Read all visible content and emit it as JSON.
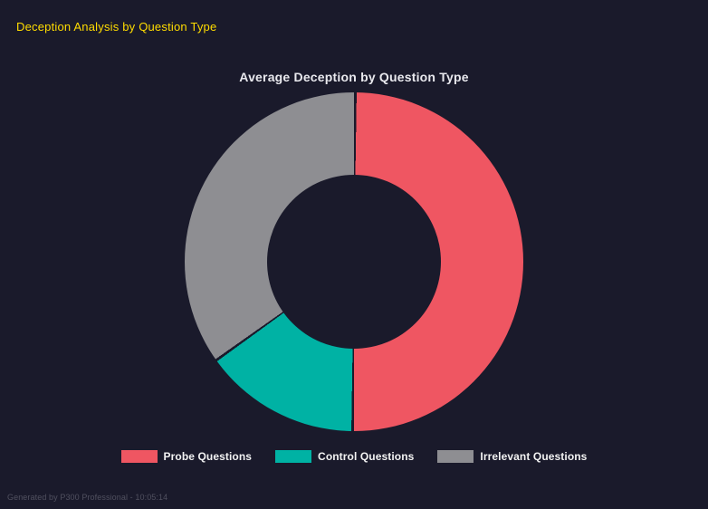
{
  "header": {
    "title": "Deception Analysis by Question Type"
  },
  "footer": {
    "text": "Generated by P300 Professional - 10:05:14"
  },
  "colors": {
    "background": "#1a1a2b",
    "header_title": "#ffdc00",
    "chart_title": "#e9e9ee",
    "legend_text": "#f2f2f2",
    "footer_text": "#50505f"
  },
  "chart_data": {
    "type": "pie",
    "variant": "donut",
    "title": "Average Deception by Question Type",
    "categories": [
      "Probe Questions",
      "Control Questions",
      "Irrelevant Questions"
    ],
    "values": [
      50,
      15,
      35
    ],
    "colors": [
      "#ef5662",
      "#00b2a4",
      "#8e8e92"
    ],
    "cutout_ratio": 0.51,
    "start_angle_deg": 0,
    "direction": "clockwise",
    "legend_position": "bottom"
  }
}
